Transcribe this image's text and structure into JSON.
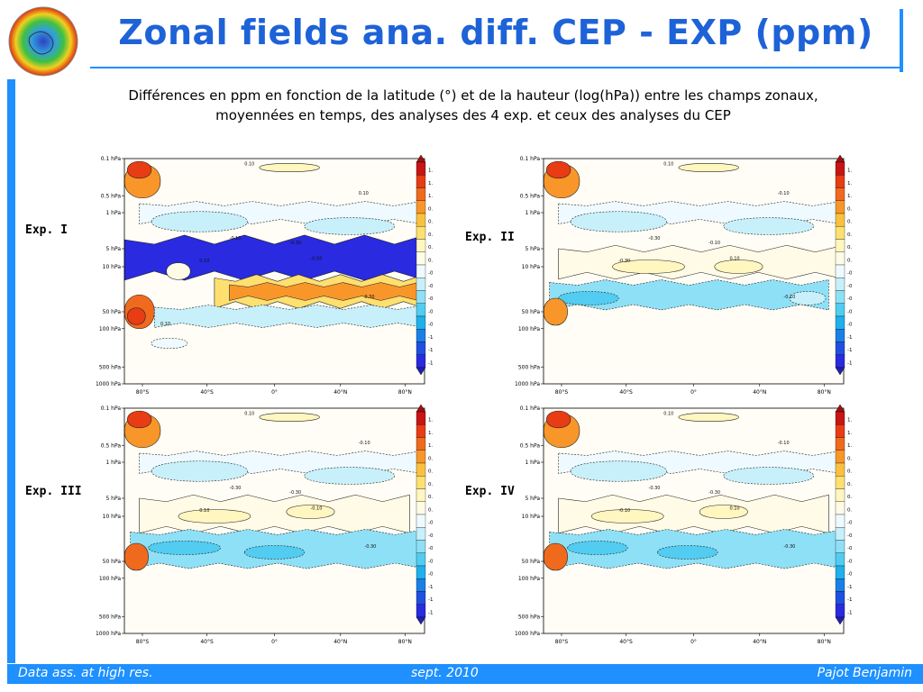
{
  "slide": {
    "title": "Zonal fields ana. diff. CEP - EXP (ppm)",
    "subtitle_line1": "Différences en ppm en fonction de la latitude (°) et de la hauteur (log(hPa)) entre les champs zonaux,",
    "subtitle_line2": "moyennées en temps, des analyses des 4 exp. et ceux des analyses du CEP"
  },
  "footer": {
    "left": "Data ass. at high res.",
    "center": "sept. 2010",
    "right": "Pajot Benjamin"
  },
  "colors": {
    "accent": "#1e90ff",
    "title": "#1e62d8"
  },
  "chart_data": [
    {
      "type": "heatmap",
      "panel_label": "Exp. I",
      "x_ticks": [
        "80°S",
        "40°S",
        "0°",
        "40°N",
        "80°N"
      ],
      "y_ticks": [
        "0.1 hPa",
        "0.5 hPa",
        "1 hPa",
        "5 hPa",
        "10 hPa",
        "50 hPa",
        "100 hPa",
        "500 hPa",
        "1000 hPa"
      ],
      "colorbar": [
        "1.5",
        "1.3",
        "1.1",
        "0.9",
        "0.7",
        "0.5",
        "0.3",
        "0.1",
        "-0.1",
        "-0.3",
        "-0.5",
        "-0.7",
        "-0.9",
        "-1.1",
        "-1.3",
        "-1.5"
      ],
      "contour_labels": [
        "0.10",
        "0.10",
        "-0.10",
        "-0.30",
        "-0.50",
        "0.10",
        "0.30",
        "0.10"
      ]
    },
    {
      "type": "heatmap",
      "panel_label": "Exp. II",
      "x_ticks": [
        "80°S",
        "40°S",
        "0°",
        "40°N",
        "80°N"
      ],
      "y_ticks": [
        "0.1 hPa",
        "0.5 hPa",
        "1 hPa",
        "5 hPa",
        "10 hPa",
        "50 hPa",
        "100 hPa",
        "500 hPa",
        "1000 hPa"
      ],
      "colorbar": [
        "1.5",
        "1.3",
        "1.1",
        "0.9",
        "0.7",
        "0.5",
        "0.3",
        "0.1",
        "-0.1",
        "-0.3",
        "-0.5",
        "-0.7",
        "-0.9",
        "-1.1",
        "-1.3",
        "-1.5"
      ],
      "contour_labels": [
        "0.10",
        "-0.10",
        "-0.30",
        "-0.10",
        "0.10",
        "-0.30",
        "-0.10"
      ]
    },
    {
      "type": "heatmap",
      "panel_label": "Exp. III",
      "x_ticks": [
        "80°S",
        "40°S",
        "0°",
        "40°N",
        "80°N"
      ],
      "y_ticks": [
        "0.1 hPa",
        "0.5 hPa",
        "1 hPa",
        "5 hPa",
        "10 hPa",
        "50 hPa",
        "100 hPa",
        "500 hPa",
        "1000 hPa"
      ],
      "colorbar": [
        "1.5",
        "1.3",
        "1.1",
        "0.9",
        "0.7",
        "0.5",
        "0.3",
        "0.1",
        "-0.1",
        "-0.3",
        "-0.5",
        "-0.7",
        "-0.9",
        "-1.1",
        "-1.3",
        "-1.5"
      ],
      "contour_labels": [
        "0.10",
        "-0.10",
        "-0.30",
        "-0.30",
        "-0.10",
        "0.10",
        "-0.30"
      ]
    },
    {
      "type": "heatmap",
      "panel_label": "Exp. IV",
      "x_ticks": [
        "80°S",
        "40°S",
        "0°",
        "40°N",
        "80°N"
      ],
      "y_ticks": [
        "0.1 hPa",
        "0.5 hPa",
        "1 hPa",
        "5 hPa",
        "10 hPa",
        "50 hPa",
        "100 hPa",
        "500 hPa",
        "1000 hPa"
      ],
      "colorbar": [
        "1.5",
        "1.3",
        "1.1",
        "0.9",
        "0.7",
        "0.5",
        "0.3",
        "0.1",
        "-0.1",
        "-0.3",
        "-0.5",
        "-0.7",
        "-0.9",
        "-1.1",
        "-1.3",
        "-1.5"
      ],
      "contour_labels": [
        "0.10",
        "-0.10",
        "-0.30",
        "-0.30",
        "0.10",
        "-0.10",
        "-0.30"
      ]
    }
  ]
}
